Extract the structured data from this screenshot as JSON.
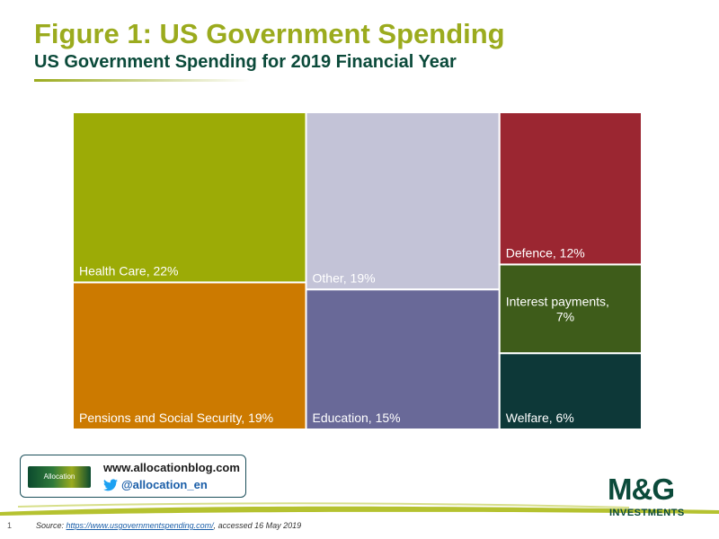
{
  "header": {
    "title": "Figure 1: US Government Spending",
    "subtitle": "US Government Spending for 2019 Financial Year"
  },
  "chart_data": {
    "type": "treemap",
    "title": "US Government Spending for 2019 Financial Year",
    "categories": [
      "Health Care",
      "Pensions and Social Security",
      "Other",
      "Education",
      "Defence",
      "Interest payments",
      "Welfare"
    ],
    "values": [
      22,
      19,
      19,
      15,
      12,
      7,
      6
    ],
    "labels": [
      "Health Care, 22%",
      "Pensions and Social Security, 19%",
      "Other, 19%",
      "Education, 15%",
      "Defence, 12%",
      "Interest payments,\n7%",
      "Welfare, 6%"
    ],
    "colors": [
      "#9cab06",
      "#cc7a00",
      "#c3c3d7",
      "#696998",
      "#9b2631",
      "#3e5c1a",
      "#0d3838"
    ]
  },
  "footer": {
    "allocation_logo": "Allocation",
    "blog_url": "www.allocationblog.com",
    "twitter_handle": "@allocation_en",
    "page_number": "1",
    "source_prefix": "Source: ",
    "source_link": "https://www.usgovernmentspending.com/",
    "source_suffix": ", accessed 16 May 2019",
    "brand_logo": "M&G",
    "brand_sub": "INVESTMENTS"
  },
  "icons": {
    "twitter": "twitter-bird-icon"
  }
}
